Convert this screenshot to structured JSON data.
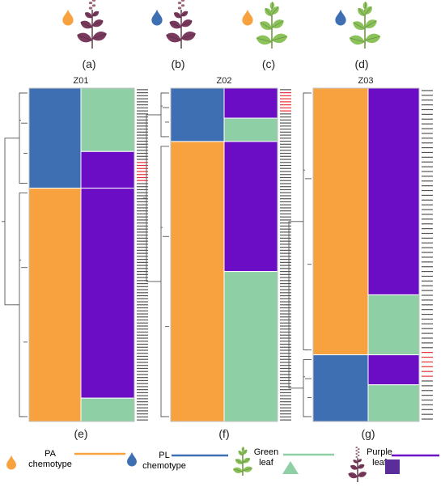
{
  "colors": {
    "pa": "#F7A23E",
    "pl": "#3F6FB3",
    "green": "#8FCFA6",
    "purple": "#6A0DC4",
    "purple_box": "#5B2D9A",
    "leaf_green": "#8CC25A",
    "leaf_purple": "#7A3A5E",
    "highlight": "#E8303A"
  },
  "icons": [
    {
      "label": "(a)",
      "drop": "pa",
      "leaf": "purple"
    },
    {
      "label": "(b)",
      "drop": "pl",
      "leaf": "purple"
    },
    {
      "label": "(c)",
      "drop": "pa",
      "leaf": "green"
    },
    {
      "label": "(d)",
      "drop": "pl",
      "leaf": "green"
    }
  ],
  "panels": [
    {
      "title": "Z01",
      "label": "(e)",
      "blocks": [
        {
          "chemotype": "pl",
          "leaf": "green",
          "fraction": 0.19
        },
        {
          "chemotype": "pl",
          "leaf": "purple",
          "fraction": 0.11
        },
        {
          "chemotype": "pa",
          "leaf": "purple",
          "fraction": 0.63
        },
        {
          "chemotype": "pa",
          "leaf": "green",
          "fraction": 0.07
        }
      ]
    },
    {
      "title": "Z02",
      "label": "(f)",
      "blocks": [
        {
          "chemotype": "pl",
          "leaf": "purple",
          "fraction": 0.09
        },
        {
          "chemotype": "pl",
          "leaf": "green",
          "fraction": 0.07
        },
        {
          "chemotype": "pa",
          "leaf": "purple",
          "fraction": 0.39
        },
        {
          "chemotype": "pa",
          "leaf": "green",
          "fraction": 0.45
        }
      ]
    },
    {
      "title": "Z03",
      "label": "(g)",
      "blocks": [
        {
          "chemotype": "pa",
          "leaf": "purple",
          "fraction": 0.62
        },
        {
          "chemotype": "pa",
          "leaf": "green",
          "fraction": 0.18
        },
        {
          "chemotype": "pl",
          "leaf": "purple",
          "fraction": 0.09
        },
        {
          "chemotype": "pl",
          "leaf": "green",
          "fraction": 0.11
        }
      ]
    }
  ],
  "legend": [
    {
      "kind": "pa",
      "text": [
        "PA",
        "chemotype"
      ]
    },
    {
      "kind": "pl",
      "text": [
        "PL",
        "chemotype"
      ]
    },
    {
      "kind": "green",
      "text": [
        "Green",
        "leaf"
      ]
    },
    {
      "kind": "purple",
      "text": [
        "Purple",
        "leaf"
      ]
    }
  ]
}
